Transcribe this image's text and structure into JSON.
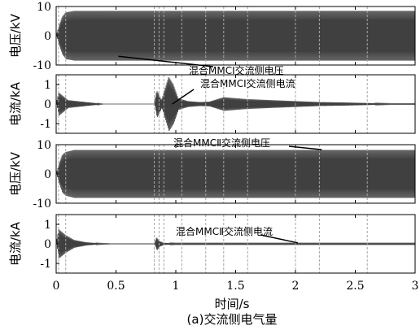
{
  "chart_data": [
    {
      "type": "line",
      "ylabel": "电压/kV",
      "yticks": [
        -10,
        0,
        10
      ],
      "ylim": [
        -10,
        10
      ],
      "xlim": [
        0,
        3
      ],
      "envelope": [
        [
          0,
          0
        ],
        [
          0.02,
          3.0
        ],
        [
          0.05,
          6.5
        ],
        [
          0.08,
          8.0
        ],
        [
          0.15,
          8.5
        ],
        [
          3.0,
          8.5
        ]
      ],
      "annotation": "混合MMCⅠ交流侧电压",
      "annotation_target": {
        "t": 0.52,
        "v": -7.0
      }
    },
    {
      "type": "line",
      "ylabel": "电流/kA",
      "yticks": [
        -1,
        0,
        1
      ],
      "ylim": [
        -1.5,
        1.5
      ],
      "xlim": [
        0,
        3
      ],
      "envelope": [
        [
          0,
          0
        ],
        [
          0.02,
          0.6
        ],
        [
          0.1,
          0.2
        ],
        [
          0.25,
          0.1
        ],
        [
          0.4,
          0
        ],
        [
          0.82,
          0
        ],
        [
          0.84,
          0.7
        ],
        [
          0.86,
          0.5
        ],
        [
          0.88,
          0.2
        ],
        [
          0.9,
          0.6
        ],
        [
          0.94,
          1.4
        ],
        [
          0.98,
          1.0
        ],
        [
          1.02,
          0.3
        ],
        [
          1.1,
          0.15
        ],
        [
          1.2,
          0.1
        ],
        [
          1.28,
          0.12
        ],
        [
          1.32,
          0.2
        ],
        [
          1.4,
          0.35
        ],
        [
          1.5,
          0.3
        ],
        [
          1.6,
          0.25
        ],
        [
          1.8,
          0.2
        ],
        [
          2.0,
          0.15
        ],
        [
          2.2,
          0.1
        ],
        [
          2.4,
          0.08
        ],
        [
          2.6,
          0.05
        ],
        [
          2.8,
          0.02
        ],
        [
          3.0,
          0.02
        ]
      ],
      "annotation": "混合MMCⅠ交流侧电流",
      "annotation_target": {
        "t": 0.97,
        "v": 0.0
      }
    },
    {
      "type": "line",
      "ylabel": "电压/kV",
      "yticks": [
        -10,
        0,
        10
      ],
      "ylim": [
        -10,
        10
      ],
      "xlim": [
        0,
        3
      ],
      "envelope": [
        [
          0,
          0
        ],
        [
          0.02,
          3.0
        ],
        [
          0.05,
          6.5
        ],
        [
          0.08,
          7.5
        ],
        [
          0.15,
          8.2
        ],
        [
          3.0,
          8.2
        ]
      ],
      "annotation": "混合MMCⅡ交流侧电压",
      "annotation_target": {
        "t": 2.22,
        "v": 8.3
      }
    },
    {
      "type": "line",
      "ylabel": "电流/kA",
      "yticks": [
        -1,
        0,
        1
      ],
      "ylim": [
        -1.5,
        1.5
      ],
      "xlim": [
        0,
        3
      ],
      "envelope": [
        [
          0,
          0
        ],
        [
          0.02,
          0.75
        ],
        [
          0.08,
          0.45
        ],
        [
          0.15,
          0.2
        ],
        [
          0.25,
          0.08
        ],
        [
          0.35,
          0.03
        ],
        [
          0.45,
          0.01
        ],
        [
          0.82,
          0.01
        ],
        [
          0.84,
          0.35
        ],
        [
          0.86,
          0.15
        ],
        [
          0.9,
          0.05
        ],
        [
          1.0,
          0.03
        ],
        [
          3.0,
          0.03
        ]
      ],
      "annotation": "混合MMCⅡ交流侧电流",
      "annotation_target": {
        "t": 2.02,
        "v": 0.05
      }
    }
  ],
  "xaxis": {
    "label": "时间/s",
    "ticks": [
      0,
      0.5,
      1,
      1.5,
      2,
      2.5,
      3
    ],
    "tick_labels": [
      "0",
      "0.5",
      "1",
      "1.5",
      "2",
      "2.5",
      "3"
    ]
  },
  "event_times": [
    0.02,
    0.08,
    0.82,
    0.86,
    0.9,
    1.05,
    1.25,
    1.4,
    1.6,
    2.0,
    2.2,
    2.6
  ],
  "caption": "(a)交流侧电气量",
  "colors": {
    "wave": "#404040",
    "axis": "#000000",
    "event_line": "#a6a6a6"
  }
}
